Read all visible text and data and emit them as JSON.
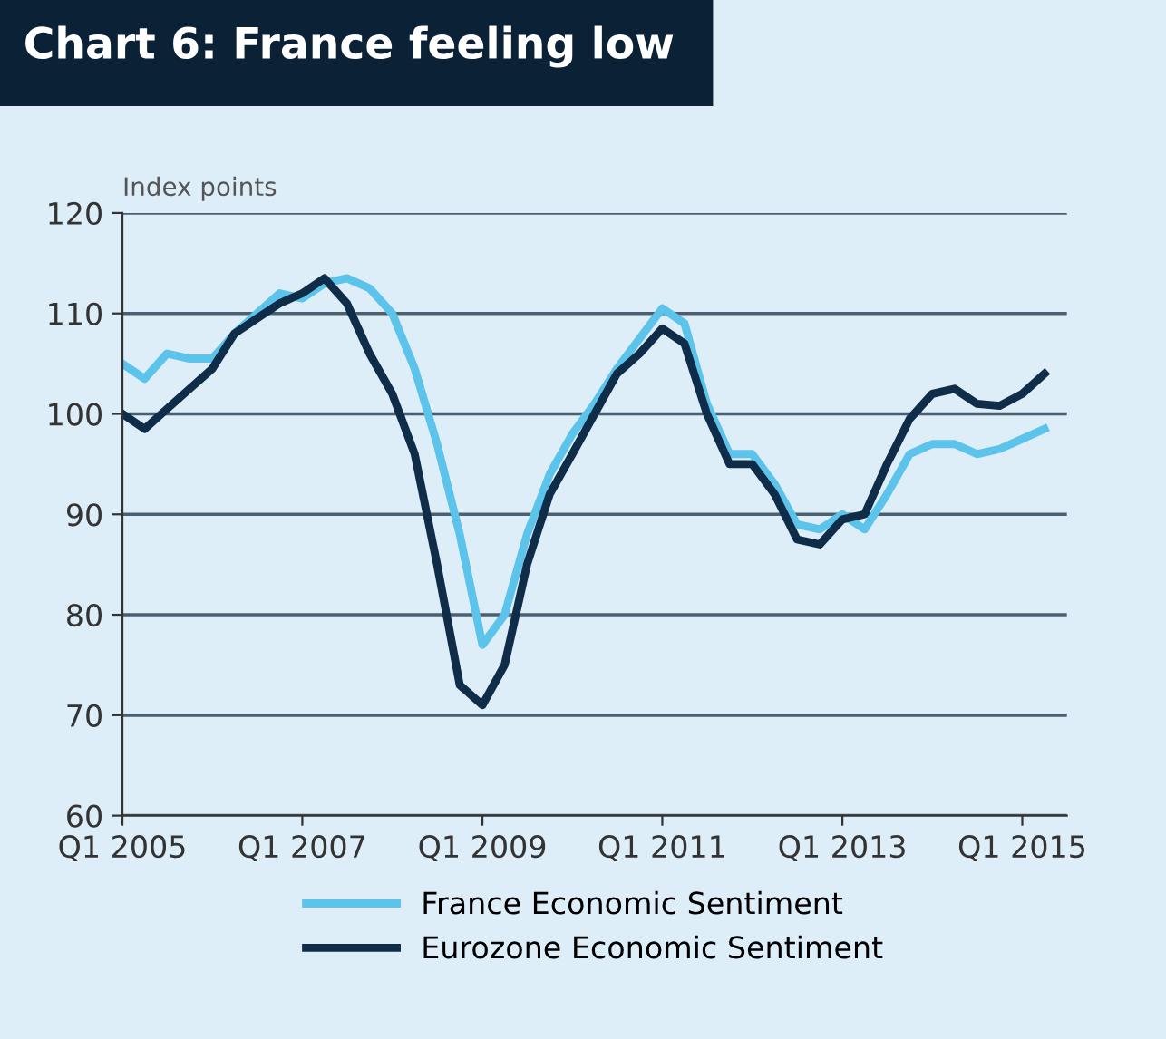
{
  "chart_data": {
    "type": "line",
    "title": "Chart 6: France feeling low",
    "ylabel": "Index points",
    "x": [
      "2005-01",
      "2005-04",
      "2005-07",
      "2005-10",
      "2006-01",
      "2006-04",
      "2006-07",
      "2006-10",
      "2007-01",
      "2007-04",
      "2007-07",
      "2007-10",
      "2008-01",
      "2008-04",
      "2008-07",
      "2008-10",
      "2009-01",
      "2009-04",
      "2009-07",
      "2009-10",
      "2010-01",
      "2010-04",
      "2010-07",
      "2010-10",
      "2011-01",
      "2011-04",
      "2011-07",
      "2011-10",
      "2012-01",
      "2012-04",
      "2012-07",
      "2012-10",
      "2013-01",
      "2013-04",
      "2013-07",
      "2013-10",
      "2014-01",
      "2014-04",
      "2014-07",
      "2014-10",
      "2015-01",
      "2015-04"
    ],
    "series": [
      {
        "name": "France Economic Sentiment",
        "color": "#5cc3ea",
        "values": [
          105,
          103.5,
          106,
          105.5,
          105.5,
          108,
          110,
          112,
          111.5,
          113,
          113.5,
          112.5,
          110,
          104.5,
          97,
          88,
          77,
          80,
          88,
          94,
          98,
          101,
          104.5,
          107.5,
          110.5,
          109,
          101,
          96,
          96,
          93,
          89,
          88.5,
          90,
          88.5,
          92,
          96,
          97,
          97,
          96,
          96.5,
          97.5,
          98.5
        ]
      },
      {
        "name": "Eurozone Economic Sentiment",
        "color": "#0f2c48",
        "values": [
          100,
          98.5,
          100.5,
          102.5,
          104.5,
          108,
          109.5,
          111,
          112,
          113.5,
          111,
          106,
          102,
          96,
          85,
          73,
          71,
          75,
          85,
          92,
          96,
          100,
          104,
          106,
          108.5,
          107,
          100,
          95,
          95,
          92,
          87.5,
          87,
          89.5,
          90,
          95,
          99.5,
          102,
          102.5,
          101,
          100.8,
          102,
          104
        ]
      }
    ],
    "xlim": [
      "2005-01",
      "2015-07"
    ],
    "xticks": [
      {
        "value": "2005-01",
        "label": "Q1 2005"
      },
      {
        "value": "2007-01",
        "label": "Q1 2007"
      },
      {
        "value": "2009-01",
        "label": "Q1 2009"
      },
      {
        "value": "2011-01",
        "label": "Q1 2011"
      },
      {
        "value": "2013-01",
        "label": "Q1 2013"
      },
      {
        "value": "2015-01",
        "label": "Q1 2015"
      }
    ],
    "ylim": [
      60,
      120
    ],
    "yticks": [
      60,
      70,
      80,
      90,
      100,
      110,
      120
    ],
    "grid": "y",
    "legend": "bottom",
    "marker": "none",
    "line_style": "solid"
  }
}
